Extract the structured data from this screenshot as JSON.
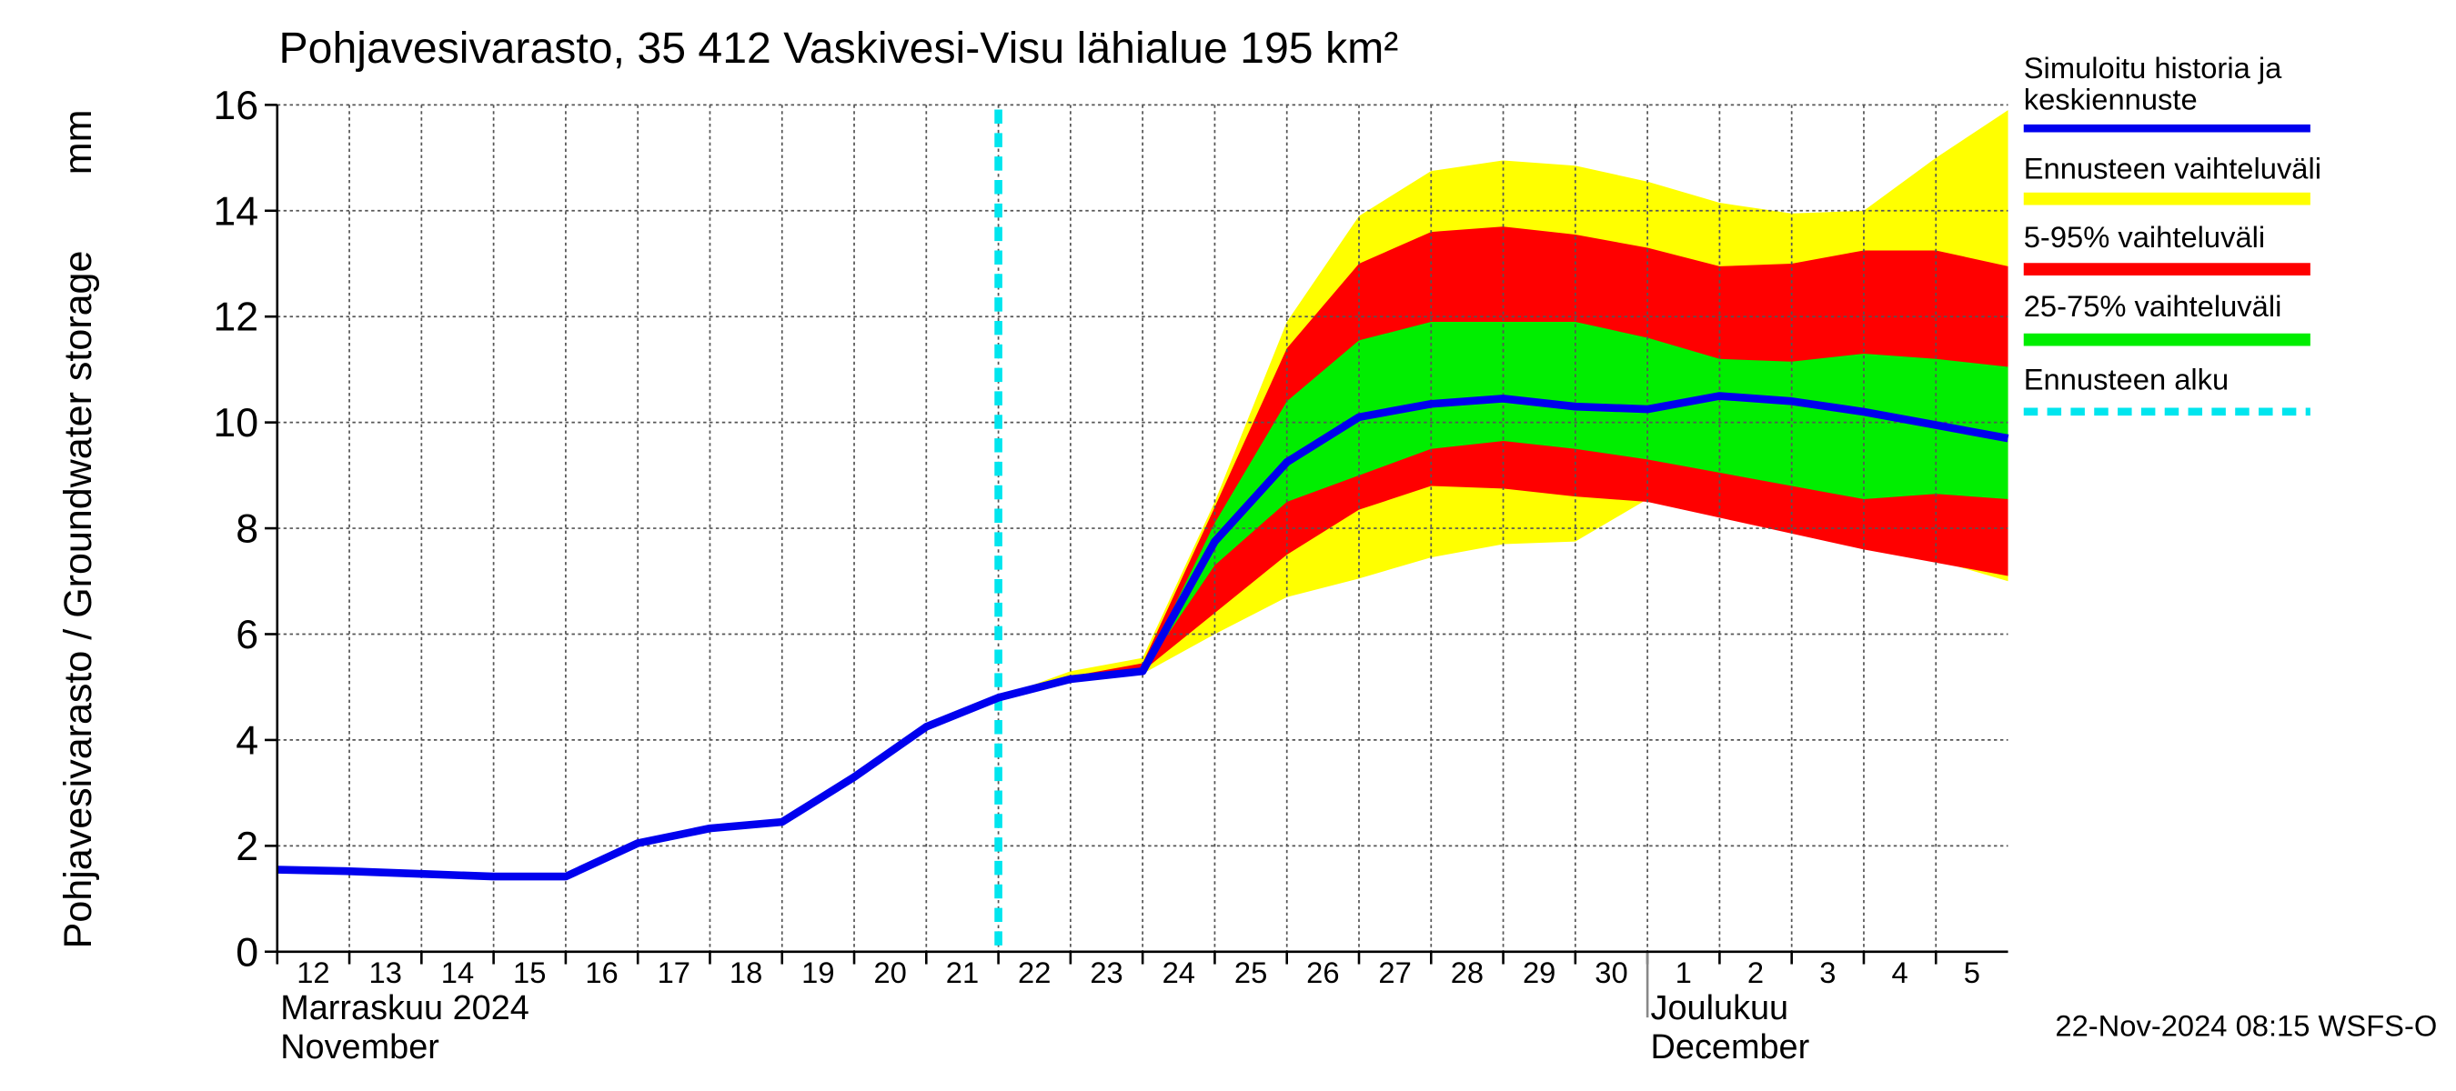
{
  "chart_data": {
    "type": "band-forecast",
    "title": "Pohjavesivarasto, 35 412 Vaskivesi-Visu lähialue 195 km²",
    "y_label": "Pohjavesivarasto / Groundwater storage",
    "y_unit": "mm",
    "footer": "22-Nov-2024 08:15 WSFS-O",
    "ylim": [
      0,
      16
    ],
    "yticks": [
      0,
      2,
      4,
      6,
      8,
      10,
      12,
      14,
      16
    ],
    "xlim": [
      "2024-11-12",
      "2024-12-06"
    ],
    "xticks": [
      {
        "value": "2024-11-12",
        "label": "12"
      },
      {
        "value": "2024-11-13",
        "label": "13"
      },
      {
        "value": "2024-11-14",
        "label": "14"
      },
      {
        "value": "2024-11-15",
        "label": "15"
      },
      {
        "value": "2024-11-16",
        "label": "16"
      },
      {
        "value": "2024-11-17",
        "label": "17"
      },
      {
        "value": "2024-11-18",
        "label": "18"
      },
      {
        "value": "2024-11-19",
        "label": "19"
      },
      {
        "value": "2024-11-20",
        "label": "20"
      },
      {
        "value": "2024-11-21",
        "label": "21"
      },
      {
        "value": "2024-11-22",
        "label": "22"
      },
      {
        "value": "2024-11-23",
        "label": "23"
      },
      {
        "value": "2024-11-24",
        "label": "24"
      },
      {
        "value": "2024-11-25",
        "label": "25"
      },
      {
        "value": "2024-11-26",
        "label": "26"
      },
      {
        "value": "2024-11-27",
        "label": "27"
      },
      {
        "value": "2024-11-28",
        "label": "28"
      },
      {
        "value": "2024-11-29",
        "label": "29"
      },
      {
        "value": "2024-11-30",
        "label": "30"
      },
      {
        "value": "2024-12-01",
        "label": "1"
      },
      {
        "value": "2024-12-02",
        "label": "2"
      },
      {
        "value": "2024-12-03",
        "label": "3"
      },
      {
        "value": "2024-12-04",
        "label": "4"
      },
      {
        "value": "2024-12-05",
        "label": "5"
      }
    ],
    "months": [
      {
        "value": "2024-11-12",
        "label_fi": "Marraskuu 2024",
        "label_en": "November"
      },
      {
        "value": "2024-12-01",
        "label_fi": "Joulukuu",
        "label_en": "December"
      }
    ],
    "grid": true,
    "x": [
      "2024-11-12",
      "2024-11-13",
      "2024-11-14",
      "2024-11-15",
      "2024-11-16",
      "2024-11-17",
      "2024-11-18",
      "2024-11-19",
      "2024-11-20",
      "2024-11-21",
      "2024-11-22",
      "2024-11-23",
      "2024-11-24",
      "2024-11-25",
      "2024-11-26",
      "2024-11-27",
      "2024-11-28",
      "2024-11-29",
      "2024-11-30",
      "2024-12-01",
      "2024-12-02",
      "2024-12-03",
      "2024-12-04",
      "2024-12-05",
      "2024-12-06"
    ],
    "bands": [
      {
        "name": "Ennusteen vaihteluväli",
        "color": "#ffff00",
        "high": [
          null,
          null,
          null,
          null,
          null,
          null,
          null,
          null,
          null,
          null,
          4.8,
          5.3,
          5.55,
          8.5,
          11.9,
          13.9,
          14.75,
          14.95,
          14.85,
          14.55,
          14.15,
          13.95,
          14.0,
          15.0,
          15.9
        ],
        "low": [
          null,
          null,
          null,
          null,
          null,
          null,
          null,
          null,
          null,
          null,
          4.8,
          5.1,
          5.25,
          6.0,
          6.7,
          7.05,
          7.45,
          7.7,
          7.75,
          8.55,
          8.3,
          8.0,
          7.7,
          7.4,
          7.0
        ]
      },
      {
        "name": "5-95% vaihteluväli",
        "color": "#ff0000",
        "high": [
          null,
          null,
          null,
          null,
          null,
          null,
          null,
          null,
          null,
          null,
          4.8,
          5.2,
          5.45,
          8.4,
          11.4,
          13.0,
          13.6,
          13.7,
          13.55,
          13.3,
          12.95,
          13.0,
          13.25,
          13.25,
          12.95
        ],
        "low": [
          null,
          null,
          null,
          null,
          null,
          null,
          null,
          null,
          null,
          null,
          4.8,
          5.15,
          5.3,
          6.4,
          7.5,
          8.35,
          8.8,
          8.75,
          8.6,
          8.5,
          8.2,
          7.9,
          7.6,
          7.35,
          7.1
        ]
      },
      {
        "name": "25-75% vaihteluväli",
        "color": "#00ee00",
        "high": [
          null,
          null,
          null,
          null,
          null,
          null,
          null,
          null,
          null,
          null,
          4.8,
          5.15,
          5.3,
          8.1,
          10.4,
          11.55,
          11.9,
          11.9,
          11.9,
          11.6,
          11.2,
          11.15,
          11.3,
          11.2,
          11.05
        ],
        "low": [
          null,
          null,
          null,
          null,
          null,
          null,
          null,
          null,
          null,
          null,
          4.8,
          5.15,
          5.3,
          7.3,
          8.5,
          9.0,
          9.5,
          9.65,
          9.5,
          9.3,
          9.05,
          8.8,
          8.55,
          8.65,
          8.55
        ]
      }
    ],
    "series": [
      {
        "name": "Simuloitu historia ja\nkeskiennuste",
        "color": "#0000ee",
        "values": [
          1.55,
          1.52,
          1.47,
          1.42,
          1.42,
          2.05,
          2.33,
          2.45,
          3.3,
          4.25,
          4.8,
          5.15,
          5.3,
          7.75,
          9.25,
          10.1,
          10.35,
          10.45,
          10.3,
          10.25,
          10.5,
          10.4,
          10.2,
          9.95,
          9.7
        ]
      }
    ],
    "forecast_start": {
      "name": "Ennusteen alku",
      "value": "2024-11-22",
      "color": "#00e5ee"
    }
  }
}
